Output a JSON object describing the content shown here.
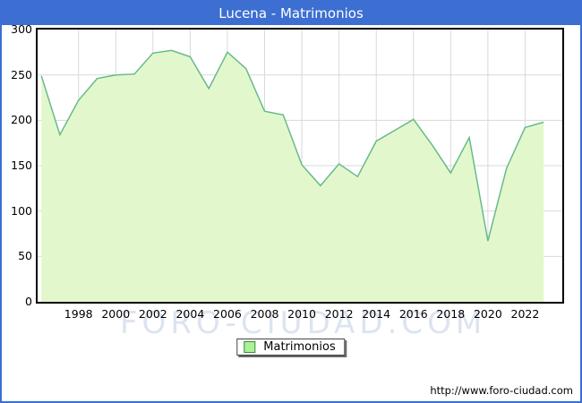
{
  "window": {
    "title": "Lucena - Matrimonios"
  },
  "colors": {
    "titlebar_bg": "#3c6fd1",
    "frame_border": "#3c6fd1",
    "area_fill": "#e2f8cc",
    "line": "#68ba8b",
    "gridline": "#d9d9d9",
    "legend_swatch_fill": "#aaf296",
    "legend_swatch_border": "#3d8b3d",
    "watermark": "#dce4f1"
  },
  "legend": {
    "label": "Matrimonios"
  },
  "footer": {
    "url": "http://www.foro-ciudad.com"
  },
  "watermark_text": "FORO-CIUDAD.COM",
  "chart_data": {
    "type": "area",
    "title": "Lucena - Matrimonios",
    "series_name": "Matrimonios",
    "x": [
      1996,
      1997,
      1998,
      1999,
      2000,
      2001,
      2002,
      2003,
      2004,
      2005,
      2006,
      2007,
      2008,
      2009,
      2010,
      2011,
      2012,
      2013,
      2014,
      2015,
      2016,
      2017,
      2018,
      2019,
      2020,
      2021,
      2022,
      2023
    ],
    "series": [
      {
        "name": "Matrimonios",
        "values": [
          249,
          184,
          222,
          246,
          250,
          251,
          274,
          277,
          270,
          235,
          275,
          257,
          210,
          206,
          151,
          128,
          152,
          138,
          177,
          189,
          201,
          173,
          142,
          181,
          67,
          147,
          192,
          198
        ]
      }
    ],
    "ylim": [
      0,
      300
    ],
    "y_ticks": [
      0,
      50,
      100,
      150,
      200,
      250,
      300
    ],
    "x_ticks": [
      1998,
      2000,
      2002,
      2004,
      2006,
      2008,
      2010,
      2012,
      2014,
      2016,
      2018,
      2020,
      2022
    ],
    "grid": true,
    "legend_position": "bottom",
    "xlabel": "",
    "ylabel": ""
  }
}
